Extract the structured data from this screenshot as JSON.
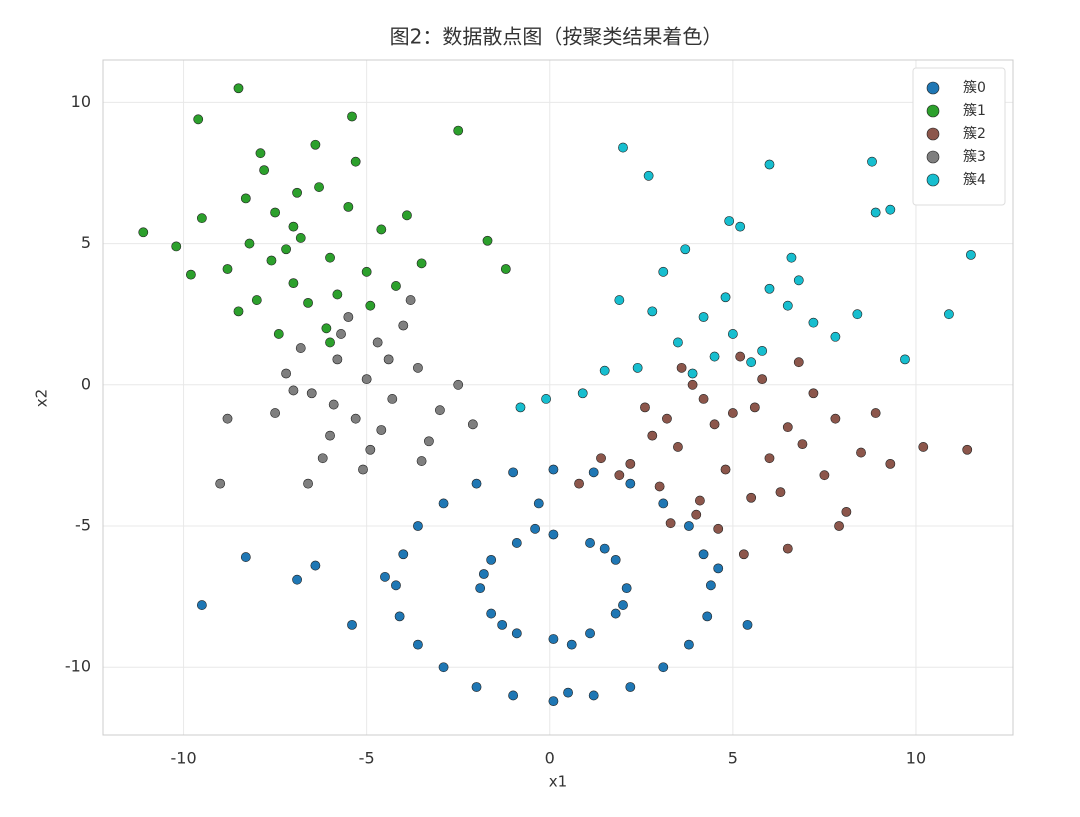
{
  "chart_data": {
    "type": "scatter",
    "title": "图2：数据散点图（按聚类结果着色）",
    "x_label": "x1",
    "y_label": "x2",
    "xlim": [
      -12.2,
      12.65
    ],
    "ylim": [
      -12.4,
      11.5
    ],
    "xticks": [
      -10,
      -5,
      0,
      5,
      10
    ],
    "yticks": [
      -10,
      -5,
      0,
      5,
      10
    ],
    "grid": true,
    "legend": "upper right",
    "series": [
      {
        "name": "簇0",
        "color": "#1f77b4",
        "x": [
          4.4,
          3.8,
          2.2,
          0.1,
          -2.0,
          -3.6,
          -4.2,
          -3.6,
          -2.0,
          0.1,
          2.2,
          3.8,
          4.2,
          3.1,
          1.2,
          -1.0,
          -2.9,
          -4.0,
          -4.1,
          -2.9,
          -1.0,
          1.2,
          3.1,
          4.3,
          2.1,
          1.8,
          1.1,
          0.1,
          -0.9,
          -1.6,
          -1.9,
          -1.6,
          -0.9,
          0.1,
          1.1,
          1.8,
          1.5,
          -1.3,
          0.6,
          -0.4,
          2.0,
          -1.8,
          -9.5,
          -8.3,
          -6.9,
          -6.4,
          -5.4,
          5.4,
          -0.3,
          4.6,
          -4.5,
          0.5
        ],
        "y": [
          -7.1,
          -5.0,
          -3.5,
          -3.0,
          -3.5,
          -5.0,
          -7.1,
          -9.2,
          -10.7,
          -11.2,
          -10.7,
          -9.2,
          -6.0,
          -4.2,
          -3.1,
          -3.1,
          -4.2,
          -6.0,
          -8.2,
          -10.0,
          -11.0,
          -11.0,
          -10.0,
          -8.2,
          -7.2,
          -6.2,
          -5.6,
          -5.3,
          -5.6,
          -6.2,
          -7.2,
          -8.1,
          -8.8,
          -9.0,
          -8.8,
          -8.1,
          -5.8,
          -8.5,
          -9.2,
          -5.1,
          -7.8,
          -6.7,
          -7.8,
          -6.1,
          -6.9,
          -6.4,
          -8.5,
          -8.5,
          -4.2,
          -6.5,
          -6.8,
          -10.9
        ]
      },
      {
        "name": "簇1",
        "color": "#2ca02c",
        "x": [
          -6.8,
          -7.5,
          -6.0,
          -8.2,
          -5.5,
          -7.0,
          -6.3,
          -8.8,
          -9.5,
          -5.0,
          -7.8,
          -6.6,
          -4.6,
          -8.5,
          -7.2,
          -5.8,
          -6.9,
          -9.8,
          -4.2,
          -7.9,
          -6.1,
          -8.3,
          -10.2,
          -5.3,
          -7.4,
          -11.1,
          -3.5,
          -2.5,
          -1.7,
          -8.5,
          -9.6,
          -5.4,
          -6.4,
          -7.0,
          -4.9,
          -3.9,
          -8.0,
          -6.0,
          -1.2,
          -7.6
        ],
        "y": [
          5.2,
          6.1,
          4.5,
          5.0,
          6.3,
          3.6,
          7.0,
          4.1,
          5.9,
          4.0,
          7.6,
          2.9,
          5.5,
          2.6,
          4.8,
          3.2,
          6.8,
          3.9,
          3.5,
          8.2,
          2.0,
          6.6,
          4.9,
          7.9,
          1.8,
          5.4,
          4.3,
          9.0,
          5.1,
          10.5,
          9.4,
          9.5,
          8.5,
          5.6,
          2.8,
          6.0,
          3.0,
          1.5,
          4.1,
          4.4
        ]
      },
      {
        "name": "簇2",
        "color": "#8c564b",
        "x": [
          5.0,
          4.2,
          5.8,
          6.5,
          3.5,
          4.8,
          7.2,
          2.8,
          5.5,
          6.0,
          3.9,
          7.8,
          1.9,
          4.5,
          6.8,
          5.2,
          3.0,
          8.5,
          4.0,
          6.3,
          2.2,
          7.5,
          5.6,
          3.3,
          4.6,
          0.8,
          1.4,
          2.6,
          3.6,
          8.9,
          9.3,
          10.2,
          11.4,
          6.5,
          7.9,
          5.3,
          4.1,
          6.9,
          8.1,
          3.2
        ],
        "y": [
          -1.0,
          -0.5,
          0.2,
          -1.5,
          -2.2,
          -3.0,
          -0.3,
          -1.8,
          -4.0,
          -2.6,
          0.0,
          -1.2,
          -3.2,
          -1.4,
          0.8,
          1.0,
          -3.6,
          -2.4,
          -4.6,
          -3.8,
          -2.8,
          -3.2,
          -0.8,
          -4.9,
          -5.1,
          -3.5,
          -2.6,
          -0.8,
          0.6,
          -1.0,
          -2.8,
          -2.2,
          -2.3,
          -5.8,
          -5.0,
          -6.0,
          -4.1,
          -2.1,
          -4.5,
          -1.2
        ]
      },
      {
        "name": "簇3",
        "color": "#7f7f7f",
        "x": [
          -5.0,
          -5.8,
          -4.3,
          -6.5,
          -3.6,
          -5.3,
          -4.7,
          -7.2,
          -3.0,
          -6.0,
          -4.0,
          -5.5,
          -2.5,
          -6.8,
          -4.9,
          -3.3,
          -5.9,
          -7.5,
          -4.4,
          -6.2,
          -2.1,
          -5.1,
          -3.8,
          -6.6,
          -9.0,
          -8.8,
          -4.6,
          -5.7,
          -3.5,
          -7.0
        ],
        "y": [
          0.2,
          0.9,
          -0.5,
          -0.3,
          0.6,
          -1.2,
          1.5,
          0.4,
          -0.9,
          -1.8,
          2.1,
          2.4,
          0.0,
          1.3,
          -2.3,
          -2.0,
          -0.7,
          -1.0,
          0.9,
          -2.6,
          -1.4,
          -3.0,
          3.0,
          -3.5,
          -3.5,
          -1.2,
          -1.6,
          1.8,
          -2.7,
          -0.2
        ]
      },
      {
        "name": "簇4",
        "color": "#17becf",
        "x": [
          5.0,
          4.2,
          5.8,
          6.5,
          3.5,
          4.8,
          7.2,
          2.8,
          5.5,
          6.0,
          3.9,
          7.8,
          1.9,
          4.5,
          6.8,
          2.4,
          3.1,
          8.4,
          8.9,
          9.7,
          0.9,
          -0.1,
          1.5,
          -0.8,
          2.0,
          6.0,
          8.8,
          11.5,
          2.7,
          4.9,
          9.3,
          10.9,
          6.6,
          5.2,
          3.7
        ],
        "y": [
          1.8,
          2.4,
          1.2,
          2.8,
          1.5,
          3.1,
          2.2,
          2.6,
          0.8,
          3.4,
          0.4,
          1.7,
          3.0,
          1.0,
          3.7,
          0.6,
          4.0,
          2.5,
          6.1,
          0.9,
          -0.3,
          -0.5,
          0.5,
          -0.8,
          8.4,
          7.8,
          7.9,
          4.6,
          7.4,
          5.8,
          6.2,
          2.5,
          4.5,
          5.6,
          4.8
        ]
      }
    ]
  }
}
